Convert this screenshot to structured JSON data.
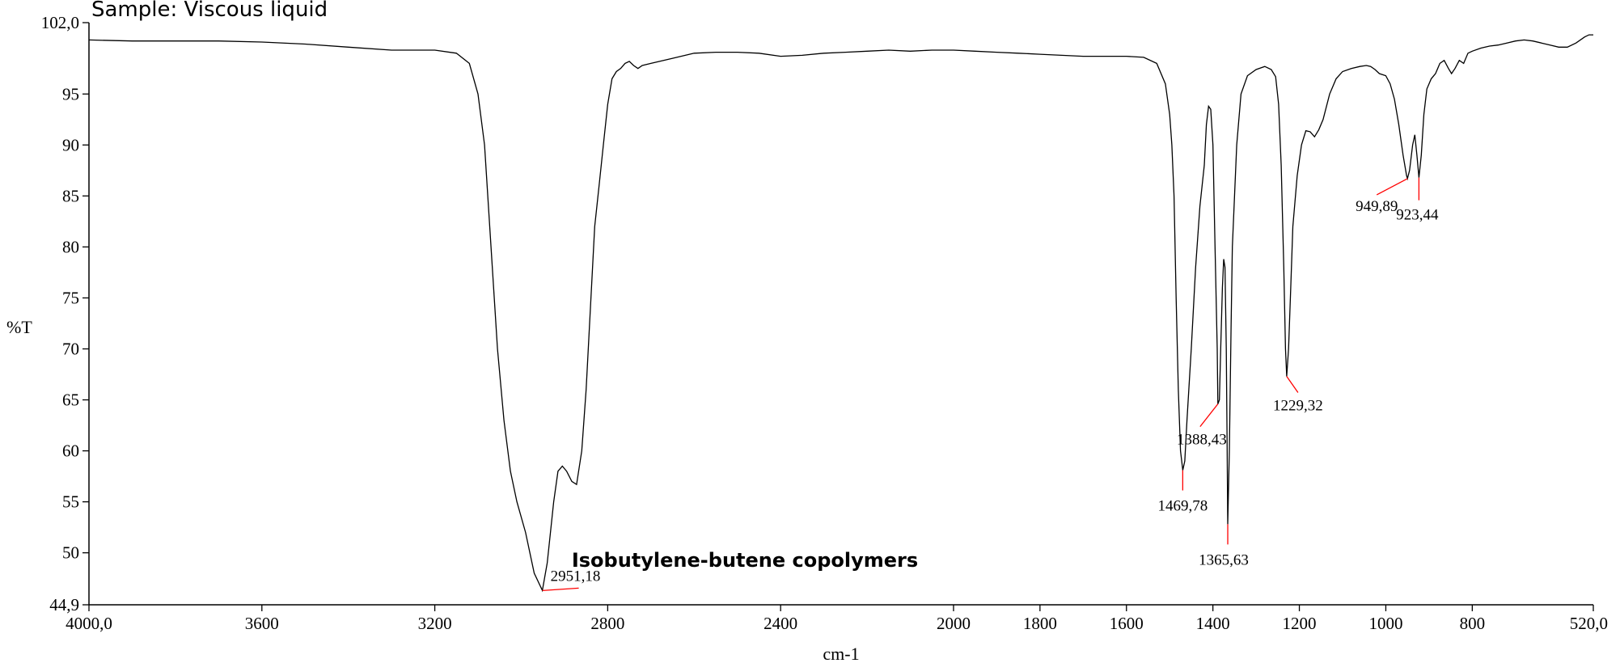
{
  "sample_text": "Sample: Viscous liquid",
  "chart_data": {
    "type": "line",
    "title": "",
    "xlabel": "cm-1",
    "ylabel": "%T",
    "xlim": [
      4000,
      520
    ],
    "ylim": [
      44.9,
      102.0
    ],
    "x_reversed": true,
    "grid": false,
    "legend": "none",
    "x_ticks": [
      {
        "value": 4000,
        "label": "4000,0"
      },
      {
        "value": 3600,
        "label": "3600"
      },
      {
        "value": 3200,
        "label": "3200"
      },
      {
        "value": 2800,
        "label": "2800"
      },
      {
        "value": 2400,
        "label": "2400"
      },
      {
        "value": 2000,
        "label": "2000"
      },
      {
        "value": 1800,
        "label": "1800"
      },
      {
        "value": 1600,
        "label": "1600"
      },
      {
        "value": 1400,
        "label": "1400"
      },
      {
        "value": 1200,
        "label": "1200"
      },
      {
        "value": 1000,
        "label": "1000"
      },
      {
        "value": 800,
        "label": "800"
      },
      {
        "value": 520,
        "label": "520,0"
      }
    ],
    "y_ticks": [
      {
        "value": 102.0,
        "label": "102,0"
      },
      {
        "value": 95,
        "label": "95"
      },
      {
        "value": 90,
        "label": "90"
      },
      {
        "value": 85,
        "label": "85"
      },
      {
        "value": 80,
        "label": "80"
      },
      {
        "value": 75,
        "label": "75"
      },
      {
        "value": 70,
        "label": "70"
      },
      {
        "value": 65,
        "label": "65"
      },
      {
        "value": 60,
        "label": "60"
      },
      {
        "value": 55,
        "label": "55"
      },
      {
        "value": 50,
        "label": "50"
      },
      {
        "value": 44.9,
        "label": "44,9"
      }
    ],
    "annotation": "Isobutylene-butene copolymers",
    "line_color": "#000000",
    "marker_color": "#ff0000",
    "peaks": [
      {
        "x": 2951.18,
        "y": 46.3,
        "label": "2951,18"
      },
      {
        "x": 1469.78,
        "y": 58.1,
        "label": "1469,78"
      },
      {
        "x": 1388.43,
        "y": 64.6,
        "label": "1388,43"
      },
      {
        "x": 1365.63,
        "y": 52.8,
        "label": "1365,63"
      },
      {
        "x": 1229.32,
        "y": 67.3,
        "label": "1229,32"
      },
      {
        "x": 949.89,
        "y": 86.7,
        "label": "949,89"
      },
      {
        "x": 923.44,
        "y": 86.8,
        "label": "923,44"
      }
    ],
    "series": [
      {
        "values": [
          [
            4000,
            100.3
          ],
          [
            3900,
            100.2
          ],
          [
            3800,
            100.2
          ],
          [
            3700,
            100.2
          ],
          [
            3600,
            100.1
          ],
          [
            3500,
            99.9
          ],
          [
            3400,
            99.6
          ],
          [
            3300,
            99.3
          ],
          [
            3200,
            99.3
          ],
          [
            3150,
            99.0
          ],
          [
            3120,
            98.0
          ],
          [
            3100,
            95.0
          ],
          [
            3085,
            90.0
          ],
          [
            3070,
            80.0
          ],
          [
            3055,
            70.0
          ],
          [
            3040,
            63.0
          ],
          [
            3025,
            58.0
          ],
          [
            3010,
            55.0
          ],
          [
            2990,
            52.0
          ],
          [
            2970,
            48.0
          ],
          [
            2951.18,
            46.3
          ],
          [
            2940,
            49.0
          ],
          [
            2925,
            55.0
          ],
          [
            2915,
            58.0
          ],
          [
            2905,
            58.5
          ],
          [
            2895,
            58.0
          ],
          [
            2883,
            57.0
          ],
          [
            2872,
            56.7
          ],
          [
            2860,
            60.0
          ],
          [
            2850,
            66.0
          ],
          [
            2840,
            74.0
          ],
          [
            2830,
            82.0
          ],
          [
            2820,
            86.0
          ],
          [
            2810,
            90.0
          ],
          [
            2800,
            94.0
          ],
          [
            2790,
            96.5
          ],
          [
            2780,
            97.2
          ],
          [
            2770,
            97.5
          ],
          [
            2760,
            98.0
          ],
          [
            2750,
            98.2
          ],
          [
            2740,
            97.8
          ],
          [
            2730,
            97.5
          ],
          [
            2720,
            97.8
          ],
          [
            2700,
            98.0
          ],
          [
            2650,
            98.5
          ],
          [
            2600,
            99.0
          ],
          [
            2550,
            99.1
          ],
          [
            2500,
            99.1
          ],
          [
            2450,
            99.0
          ],
          [
            2400,
            98.7
          ],
          [
            2350,
            98.8
          ],
          [
            2300,
            99.0
          ],
          [
            2250,
            99.1
          ],
          [
            2200,
            99.2
          ],
          [
            2150,
            99.3
          ],
          [
            2100,
            99.2
          ],
          [
            2050,
            99.3
          ],
          [
            2000,
            99.3
          ],
          [
            1950,
            99.2
          ],
          [
            1900,
            99.1
          ],
          [
            1850,
            99.0
          ],
          [
            1800,
            98.9
          ],
          [
            1750,
            98.8
          ],
          [
            1700,
            98.7
          ],
          [
            1650,
            98.7
          ],
          [
            1600,
            98.7
          ],
          [
            1560,
            98.6
          ],
          [
            1530,
            98.0
          ],
          [
            1510,
            96.0
          ],
          [
            1500,
            93.0
          ],
          [
            1495,
            90.0
          ],
          [
            1490,
            85.0
          ],
          [
            1485,
            75.0
          ],
          [
            1480,
            66.0
          ],
          [
            1475,
            60.0
          ],
          [
            1469.78,
            58.1
          ],
          [
            1465,
            59.0
          ],
          [
            1460,
            63.0
          ],
          [
            1450,
            70.0
          ],
          [
            1440,
            78.0
          ],
          [
            1430,
            84.0
          ],
          [
            1420,
            88.0
          ],
          [
            1415,
            92.0
          ],
          [
            1410,
            93.8
          ],
          [
            1405,
            93.5
          ],
          [
            1400,
            90.0
          ],
          [
            1395,
            80.0
          ],
          [
            1390,
            70.0
          ],
          [
            1388.43,
            64.6
          ],
          [
            1385,
            65.0
          ],
          [
            1382,
            70.0
          ],
          [
            1378,
            76.0
          ],
          [
            1375,
            78.8
          ],
          [
            1372,
            78.0
          ],
          [
            1369,
            70.0
          ],
          [
            1367,
            60.0
          ],
          [
            1365.63,
            52.8
          ],
          [
            1362,
            60.0
          ],
          [
            1358,
            72.0
          ],
          [
            1355,
            80.0
          ],
          [
            1345,
            90.0
          ],
          [
            1335,
            95.0
          ],
          [
            1320,
            96.8
          ],
          [
            1300,
            97.4
          ],
          [
            1280,
            97.7
          ],
          [
            1265,
            97.4
          ],
          [
            1255,
            96.7
          ],
          [
            1248,
            94.0
          ],
          [
            1242,
            88.0
          ],
          [
            1236,
            78.0
          ],
          [
            1232,
            70.0
          ],
          [
            1229.32,
            67.3
          ],
          [
            1225,
            70.0
          ],
          [
            1220,
            76.0
          ],
          [
            1215,
            82.0
          ],
          [
            1205,
            87.0
          ],
          [
            1195,
            90.0
          ],
          [
            1185,
            91.4
          ],
          [
            1175,
            91.3
          ],
          [
            1165,
            90.8
          ],
          [
            1155,
            91.5
          ],
          [
            1145,
            92.5
          ],
          [
            1130,
            95.0
          ],
          [
            1115,
            96.5
          ],
          [
            1100,
            97.2
          ],
          [
            1080,
            97.5
          ],
          [
            1060,
            97.7
          ],
          [
            1045,
            97.8
          ],
          [
            1035,
            97.7
          ],
          [
            1025,
            97.4
          ],
          [
            1015,
            97.0
          ],
          [
            1000,
            96.8
          ],
          [
            990,
            96.0
          ],
          [
            980,
            94.5
          ],
          [
            970,
            92.0
          ],
          [
            960,
            89.0
          ],
          [
            952,
            87.0
          ],
          [
            949.89,
            86.7
          ],
          [
            945,
            87.5
          ],
          [
            938,
            90.0
          ],
          [
            933,
            91.0
          ],
          [
            928,
            89.0
          ],
          [
            923.44,
            86.8
          ],
          [
            918,
            89.0
          ],
          [
            912,
            93.0
          ],
          [
            905,
            95.5
          ],
          [
            895,
            96.5
          ],
          [
            885,
            97.0
          ],
          [
            875,
            98.0
          ],
          [
            865,
            98.3
          ],
          [
            855,
            97.5
          ],
          [
            848,
            97.0
          ],
          [
            840,
            97.5
          ],
          [
            830,
            98.3
          ],
          [
            820,
            98.0
          ],
          [
            810,
            99.0
          ],
          [
            800,
            99.2
          ],
          [
            780,
            99.5
          ],
          [
            760,
            99.7
          ],
          [
            740,
            99.8
          ],
          [
            720,
            100.0
          ],
          [
            700,
            100.2
          ],
          [
            680,
            100.3
          ],
          [
            660,
            100.2
          ],
          [
            640,
            100.0
          ],
          [
            620,
            99.8
          ],
          [
            600,
            99.6
          ],
          [
            580,
            99.6
          ],
          [
            560,
            100.0
          ],
          [
            540,
            100.6
          ],
          [
            530,
            100.8
          ],
          [
            520,
            100.8
          ]
        ]
      }
    ]
  }
}
